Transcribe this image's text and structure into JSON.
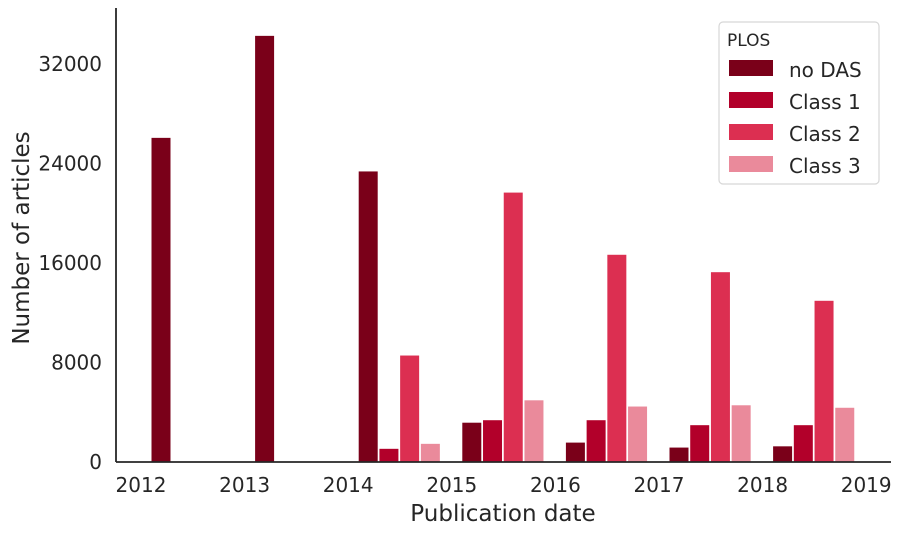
{
  "chart_data": {
    "type": "bar",
    "title": "",
    "xlabel": "Publication date",
    "ylabel": "Number of articles",
    "ylim": [
      0,
      36500
    ],
    "yticks": [
      0,
      8000,
      16000,
      24000,
      32000
    ],
    "ytick_labels": [
      "0",
      "8000",
      "16000",
      "24000",
      "32000"
    ],
    "xticks": [
      2012,
      2013,
      2014,
      2015,
      2016,
      2017,
      2018,
      2019
    ],
    "xtick_labels": [
      "2012",
      "2013",
      "2014",
      "2015",
      "2016",
      "2017",
      "2018",
      "2019"
    ],
    "grid": false,
    "legend": {
      "title": "PLOS",
      "placement": "top-right"
    },
    "bar_groups": [
      {
        "group_start": 2012.0,
        "values": [
          26100,
          0,
          0,
          0
        ]
      },
      {
        "group_start": 2013.0,
        "values": [
          34300,
          0,
          0,
          0
        ]
      },
      {
        "group_start": 2014.0,
        "values": [
          23400,
          1100,
          8600,
          1500
        ]
      },
      {
        "group_start": 2015.0,
        "values": [
          3200,
          3400,
          21700,
          5000
        ]
      },
      {
        "group_start": 2016.0,
        "values": [
          1600,
          3400,
          16700,
          4500
        ]
      },
      {
        "group_start": 2017.0,
        "values": [
          1200,
          3000,
          15300,
          4600
        ]
      },
      {
        "group_start": 2018.0,
        "values": [
          1300,
          3000,
          13000,
          4400
        ]
      }
    ],
    "series": [
      {
        "name": "no DAS",
        "color": "#7a0019"
      },
      {
        "name": "Class 1",
        "color": "#b2002a"
      },
      {
        "name": "Class 2",
        "color": "#dc2f51"
      },
      {
        "name": "Class 3",
        "color": "#ea8a9b"
      }
    ]
  }
}
